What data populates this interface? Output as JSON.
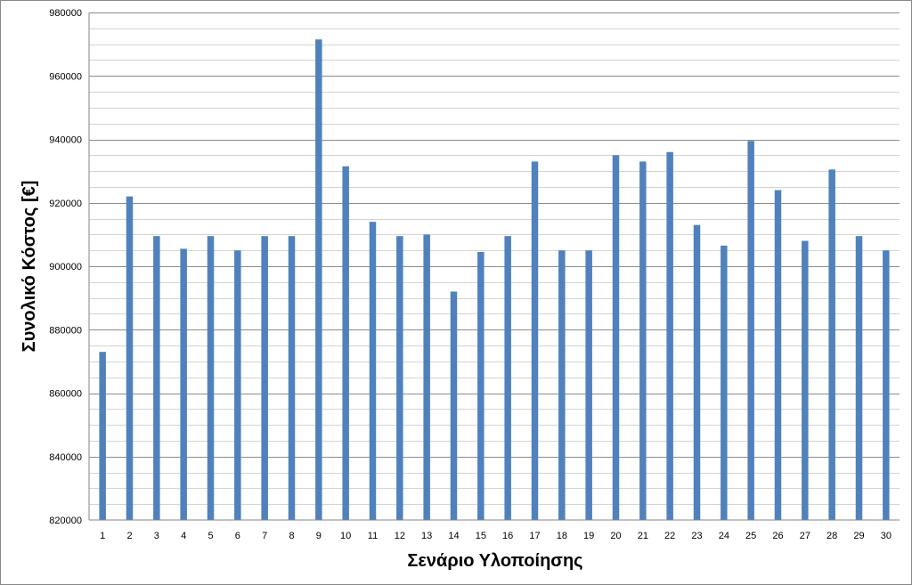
{
  "chart_data": {
    "type": "bar",
    "title": "",
    "xlabel": "Σενάριο Υλοποίησης",
    "ylabel": "Συνολικό Κόστος [€]",
    "ylim": [
      820000,
      980000
    ],
    "y_major_ticks": [
      820000,
      840000,
      860000,
      880000,
      900000,
      920000,
      940000,
      960000,
      980000
    ],
    "y_minor_step": 5000,
    "grid": true,
    "legend": "none",
    "bar_color": "#4f81bd",
    "categories": [
      "1",
      "2",
      "3",
      "4",
      "5",
      "6",
      "7",
      "8",
      "9",
      "10",
      "11",
      "12",
      "13",
      "14",
      "15",
      "16",
      "17",
      "18",
      "19",
      "20",
      "21",
      "22",
      "23",
      "24",
      "25",
      "26",
      "27",
      "28",
      "29",
      "30"
    ],
    "values": [
      873000,
      922000,
      909500,
      905500,
      909500,
      905000,
      909500,
      909500,
      971500,
      931500,
      914000,
      909500,
      910000,
      892000,
      904500,
      909500,
      933000,
      905000,
      905000,
      935000,
      933000,
      936000,
      913000,
      906500,
      939500,
      924000,
      908000,
      930500,
      909500,
      905000
    ]
  }
}
